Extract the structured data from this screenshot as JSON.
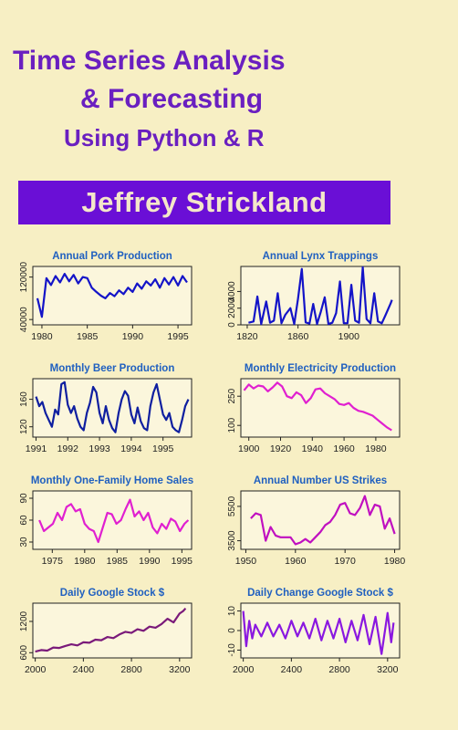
{
  "cover": {
    "title_line1": "Time Series Analysis",
    "title_line2": "& Forecasting",
    "title_line3": "Using Python & R",
    "author": "Jeffrey Strickland",
    "title_color": "#6a1fc0",
    "author_bar_color": "#6a0fd6",
    "background_color": "#f7efc4"
  },
  "chart_data": [
    {
      "type": "line",
      "title": "Annual Pork Production",
      "color": "#1414c8",
      "x_ticks": [
        "1980",
        "1985",
        "1990",
        "1995"
      ],
      "y_ticks": [
        "40000",
        "120000"
      ],
      "xlim": [
        1979,
        1996.5
      ],
      "ylim": [
        30000,
        140000
      ],
      "x": [
        1979.5,
        1980.0,
        1980.5,
        1981.0,
        1981.5,
        1982.0,
        1982.5,
        1983.0,
        1983.5,
        1984.0,
        1984.5,
        1985.0,
        1985.5,
        1986.0,
        1986.5,
        1987.0,
        1987.5,
        1988.0,
        1988.5,
        1989.0,
        1989.5,
        1990.0,
        1990.5,
        1991.0,
        1991.5,
        1992.0,
        1992.5,
        1993.0,
        1993.5,
        1994.0,
        1994.5,
        1995.0,
        1995.5,
        1996.0
      ],
      "y": [
        80000,
        45000,
        118000,
        105000,
        122000,
        110000,
        126000,
        112000,
        124000,
        108000,
        120000,
        118000,
        100000,
        92000,
        85000,
        80000,
        90000,
        84000,
        95000,
        88000,
        100000,
        92000,
        108000,
        98000,
        112000,
        104000,
        116000,
        100000,
        118000,
        106000,
        120000,
        104000,
        122000,
        110000
      ]
    },
    {
      "type": "line",
      "title": "Annual Lynx Trappings",
      "color": "#1414c8",
      "x_ticks": [
        "1820",
        "1860",
        "1900"
      ],
      "y_ticks": [
        "0",
        "2000",
        "4000"
      ],
      "xlim": [
        1815,
        1940
      ],
      "ylim": [
        0,
        7000
      ],
      "x": [
        1821,
        1825,
        1828,
        1831,
        1835,
        1838,
        1841,
        1844,
        1847,
        1850,
        1854,
        1857,
        1860,
        1863,
        1866,
        1869,
        1872,
        1875,
        1878,
        1881,
        1884,
        1887,
        1890,
        1893,
        1896,
        1899,
        1902,
        1905,
        1908,
        1911,
        1914,
        1917,
        1920,
        1923,
        1926,
        1929,
        1933,
        1934
      ],
      "y": [
        250,
        400,
        3400,
        100,
        2800,
        250,
        500,
        3800,
        200,
        1200,
        2000,
        100,
        3100,
        6700,
        300,
        150,
        2500,
        100,
        1600,
        3300,
        100,
        250,
        1400,
        5200,
        200,
        200,
        4800,
        500,
        250,
        6900,
        700,
        200,
        3800,
        400,
        200,
        1200,
        2600,
        3000
      ]
    },
    {
      "type": "line",
      "title": "Monthly  Beer Production",
      "color": "#0f1fa0",
      "x_ticks": [
        "1991",
        "1992",
        "1993",
        "1994",
        "1995"
      ],
      "y_ticks": [
        "120",
        "160"
      ],
      "xlim": [
        1990.9,
        1995.9
      ],
      "ylim": [
        105,
        190
      ],
      "x": [
        1991.0,
        1991.1,
        1991.2,
        1991.3,
        1991.4,
        1991.5,
        1991.6,
        1991.7,
        1991.8,
        1991.9,
        1992.0,
        1992.1,
        1992.2,
        1992.3,
        1992.4,
        1992.5,
        1992.6,
        1992.7,
        1992.8,
        1992.9,
        1993.0,
        1993.1,
        1993.2,
        1993.3,
        1993.4,
        1993.5,
        1993.6,
        1993.7,
        1993.8,
        1993.9,
        1994.0,
        1994.1,
        1994.2,
        1994.3,
        1994.4,
        1994.5,
        1994.6,
        1994.7,
        1994.8,
        1994.9,
        1995.0,
        1995.1,
        1995.2,
        1995.3,
        1995.4,
        1995.5,
        1995.6,
        1995.7,
        1995.8
      ],
      "y": [
        164,
        150,
        156,
        140,
        130,
        120,
        145,
        138,
        182,
        185,
        152,
        140,
        150,
        132,
        120,
        115,
        140,
        155,
        178,
        170,
        140,
        125,
        150,
        130,
        118,
        112,
        140,
        160,
        172,
        165,
        138,
        125,
        148,
        128,
        118,
        115,
        150,
        170,
        182,
        160,
        138,
        130,
        140,
        120,
        115,
        112,
        130,
        150,
        160
      ]
    },
    {
      "type": "line",
      "title": "Monthly Electricity Production",
      "color": "#e020d0",
      "x_ticks": [
        "1900",
        "1920",
        "1940",
        "1960",
        "1980"
      ],
      "y_ticks": [
        "100",
        "250"
      ],
      "xlim": [
        1895,
        1995
      ],
      "ylim": [
        40,
        340
      ],
      "x": [
        1897,
        1900,
        1903,
        1906,
        1909,
        1912,
        1915,
        1918,
        1921,
        1924,
        1927,
        1930,
        1933,
        1936,
        1939,
        1942,
        1945,
        1948,
        1951,
        1954,
        1957,
        1960,
        1963,
        1966,
        1969,
        1972,
        1975,
        1978,
        1981,
        1984,
        1987,
        1990
      ],
      "y": [
        280,
        310,
        290,
        305,
        300,
        275,
        295,
        320,
        300,
        250,
        240,
        270,
        255,
        215,
        240,
        285,
        290,
        265,
        250,
        235,
        210,
        205,
        215,
        190,
        175,
        170,
        160,
        150,
        130,
        110,
        90,
        75
      ]
    },
    {
      "type": "line",
      "title": "Monthly One-Family Home Sales",
      "color": "#e020d0",
      "x_ticks": [
        "1975",
        "1980",
        "1985",
        "1990",
        "1995"
      ],
      "y_ticks": [
        "30",
        "60",
        "90"
      ],
      "xlim": [
        1972,
        1996.5
      ],
      "ylim": [
        20,
        100
      ],
      "x": [
        1973.0,
        1973.7,
        1974.4,
        1975.1,
        1975.8,
        1976.5,
        1977.2,
        1977.9,
        1978.6,
        1979.3,
        1980.0,
        1980.7,
        1981.4,
        1982.1,
        1982.8,
        1983.5,
        1984.2,
        1984.9,
        1985.6,
        1986.3,
        1987.0,
        1987.7,
        1988.4,
        1989.1,
        1989.8,
        1990.5,
        1991.2,
        1991.9,
        1992.6,
        1993.3,
        1994.0,
        1994.7,
        1995.4,
        1996.0
      ],
      "y": [
        60,
        45,
        50,
        55,
        70,
        60,
        78,
        82,
        72,
        75,
        55,
        48,
        45,
        30,
        50,
        70,
        68,
        55,
        60,
        75,
        88,
        65,
        72,
        60,
        70,
        50,
        42,
        55,
        48,
        62,
        58,
        45,
        55,
        60
      ]
    },
    {
      "type": "line",
      "title": "Annual Number US Strikes",
      "color": "#c010c0",
      "x_ticks": [
        "1950",
        "1960",
        "1970",
        "1980"
      ],
      "y_ticks": [
        "3500",
        "5500"
      ],
      "xlim": [
        1949,
        1981
      ],
      "ylim": [
        3000,
        6400
      ],
      "x": [
        1951,
        1952,
        1953,
        1954,
        1955,
        1956,
        1957,
        1958,
        1959,
        1960,
        1961,
        1962,
        1963,
        1964,
        1965,
        1966,
        1967,
        1968,
        1969,
        1970,
        1971,
        1972,
        1973,
        1974,
        1975,
        1976,
        1977,
        1978,
        1979,
        1980
      ],
      "y": [
        4800,
        5100,
        5000,
        3500,
        4300,
        3800,
        3700,
        3700,
        3700,
        3300,
        3400,
        3600,
        3400,
        3700,
        4000,
        4400,
        4600,
        5000,
        5600,
        5700,
        5100,
        5000,
        5400,
        6100,
        5000,
        5600,
        5500,
        4200,
        4800,
        3900
      ]
    },
    {
      "type": "line",
      "title": "Daily Google Stock $",
      "color": "#7a1a7a",
      "x_ticks": [
        "2000",
        "2400",
        "2800",
        "3200"
      ],
      "y_ticks": [
        "600",
        "1200"
      ],
      "xlim": [
        1980,
        3300
      ],
      "ylim": [
        500,
        1550
      ],
      "x": [
        2000,
        2050,
        2100,
        2150,
        2200,
        2250,
        2300,
        2350,
        2400,
        2450,
        2500,
        2550,
        2600,
        2650,
        2700,
        2750,
        2800,
        2850,
        2900,
        2950,
        3000,
        3050,
        3100,
        3150,
        3200,
        3230,
        3250
      ],
      "y": [
        620,
        650,
        640,
        700,
        690,
        730,
        760,
        740,
        800,
        790,
        850,
        840,
        900,
        880,
        950,
        1000,
        980,
        1050,
        1020,
        1100,
        1080,
        1150,
        1250,
        1180,
        1350,
        1400,
        1450
      ]
    },
    {
      "type": "line",
      "title": "Daily Change Google Stock $",
      "color": "#8a18e0",
      "x_ticks": [
        "2000",
        "2400",
        "2800",
        "3200"
      ],
      "y_ticks": [
        "-10",
        "0",
        "10"
      ],
      "xlim": [
        1980,
        3300
      ],
      "ylim": [
        -14,
        14
      ],
      "x": [
        2000,
        2025,
        2050,
        2075,
        2100,
        2150,
        2200,
        2250,
        2300,
        2350,
        2400,
        2450,
        2500,
        2550,
        2600,
        2650,
        2700,
        2750,
        2800,
        2850,
        2900,
        2950,
        3000,
        3050,
        3100,
        3150,
        3200,
        3230,
        3250
      ],
      "y": [
        10,
        -8,
        5,
        -4,
        3,
        -3,
        4,
        -3,
        3,
        -4,
        5,
        -3,
        4,
        -4,
        6,
        -5,
        5,
        -4,
        6,
        -6,
        5,
        -5,
        8,
        -7,
        7,
        -12,
        9,
        -6,
        4
      ]
    }
  ]
}
